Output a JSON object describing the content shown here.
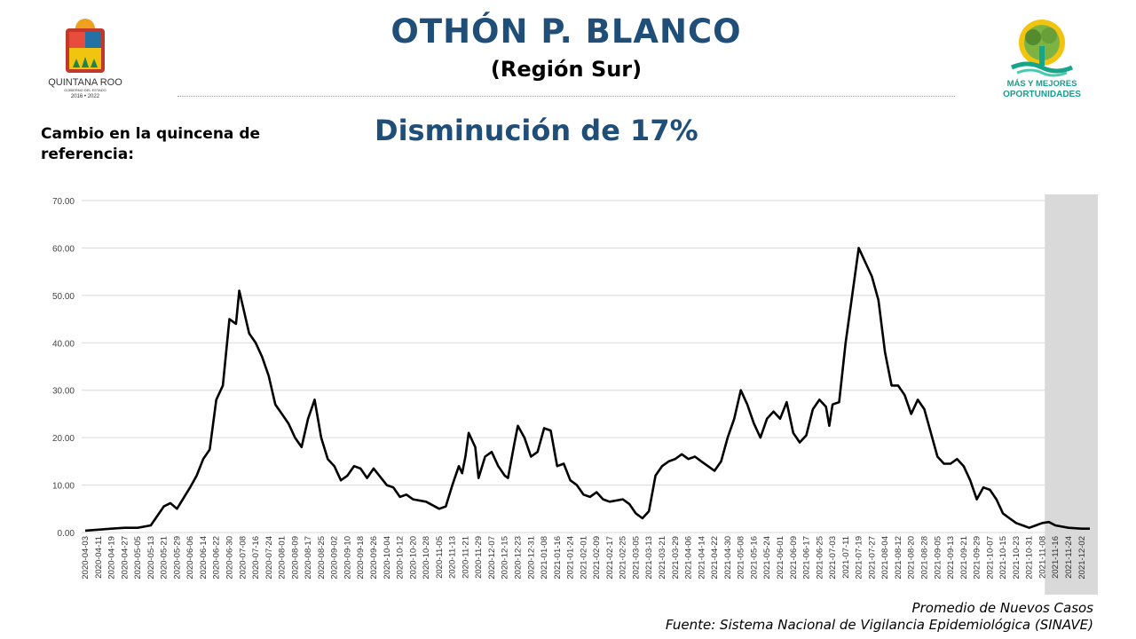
{
  "header": {
    "title": "OTHÓN P. BLANCO",
    "subtitle": "(Región Sur)"
  },
  "change_label": "Cambio en la quincena de referencia:",
  "headline": "Disminución de 17%",
  "logos": {
    "left_text": "QUINTANA ROO",
    "left_subtext": "GOBIERNO DEL ESTADO",
    "left_years": "2016 • 2022",
    "right_line1": "MÁS Y MEJORES",
    "right_line2": "OPORTUNIDADES"
  },
  "footer": {
    "line1": "Promedio de Nuevos Casos",
    "line2": "Fuente: Sistema Nacional de Vigilancia Epidemiológica (SINAVE)"
  },
  "colors": {
    "title": "#1f4e79",
    "line": "#000000",
    "grid": "#d9d9d9",
    "highlight": "#d9d9d9"
  },
  "chart_data": {
    "type": "line",
    "x_start": "2020-04-03",
    "x_end": "2021-12-07",
    "x_ticks": [
      "2020-04-03",
      "2020-04-11",
      "2020-04-19",
      "2020-04-27",
      "2020-05-05",
      "2020-05-13",
      "2020-05-21",
      "2020-05-29",
      "2020-06-06",
      "2020-06-14",
      "2020-06-22",
      "2020-06-30",
      "2020-07-08",
      "2020-07-16",
      "2020-07-24",
      "2020-08-01",
      "2020-08-09",
      "2020-08-17",
      "2020-08-25",
      "2020-09-02",
      "2020-09-10",
      "2020-09-18",
      "2020-09-26",
      "2020-10-04",
      "2020-10-12",
      "2020-10-20",
      "2020-10-28",
      "2020-11-05",
      "2020-11-13",
      "2020-11-21",
      "2020-11-29",
      "2020-12-07",
      "2020-12-15",
      "2020-12-23",
      "2020-12-31",
      "2021-01-08",
      "2021-01-16",
      "2021-01-24",
      "2021-02-01",
      "2021-02-09",
      "2021-02-17",
      "2021-02-25",
      "2021-03-05",
      "2021-03-13",
      "2021-03-21",
      "2021-03-29",
      "2021-04-06",
      "2021-04-14",
      "2021-04-22",
      "2021-04-30",
      "2021-05-08",
      "2021-05-16",
      "2021-05-24",
      "2021-06-01",
      "2021-06-09",
      "2021-06-17",
      "2021-06-25",
      "2021-07-03",
      "2021-07-11",
      "2021-07-19",
      "2021-07-27",
      "2021-08-04",
      "2021-08-12",
      "2021-08-20",
      "2021-08-28",
      "2021-09-05",
      "2021-09-13",
      "2021-09-21",
      "2021-09-29",
      "2021-10-07",
      "2021-10-15",
      "2021-10-23",
      "2021-10-31",
      "2021-11-08",
      "2021-11-16",
      "2021-11-24",
      "2021-12-02"
    ],
    "ylim": [
      0,
      70
    ],
    "y_ticks": [
      "0.00",
      "10.00",
      "20.00",
      "30.00",
      "40.00",
      "50.00",
      "60.00",
      "70.00"
    ],
    "grid": true,
    "highlight_range": [
      "2021-11-16",
      "2021-12-07"
    ],
    "series": [
      {
        "points": [
          [
            "2020-04-03",
            0.4
          ],
          [
            "2020-04-11",
            0.6
          ],
          [
            "2020-04-19",
            0.8
          ],
          [
            "2020-04-27",
            1.0
          ],
          [
            "2020-05-05",
            1.0
          ],
          [
            "2020-05-13",
            1.5
          ],
          [
            "2020-05-21",
            5.5
          ],
          [
            "2020-05-25",
            6.2
          ],
          [
            "2020-05-29",
            5.0
          ],
          [
            "2020-06-06",
            9.5
          ],
          [
            "2020-06-10",
            12.0
          ],
          [
            "2020-06-14",
            15.5
          ],
          [
            "2020-06-18",
            17.5
          ],
          [
            "2020-06-22",
            28.0
          ],
          [
            "2020-06-26",
            31.0
          ],
          [
            "2020-06-30",
            45.0
          ],
          [
            "2020-07-04",
            44.0
          ],
          [
            "2020-07-06",
            51.0
          ],
          [
            "2020-07-08",
            48.0
          ],
          [
            "2020-07-12",
            42.0
          ],
          [
            "2020-07-16",
            40.0
          ],
          [
            "2020-07-20",
            37.0
          ],
          [
            "2020-07-24",
            33.0
          ],
          [
            "2020-07-28",
            27.0
          ],
          [
            "2020-08-01",
            25.0
          ],
          [
            "2020-08-05",
            23.0
          ],
          [
            "2020-08-09",
            20.0
          ],
          [
            "2020-08-13",
            18.0
          ],
          [
            "2020-08-17",
            24.0
          ],
          [
            "2020-08-21",
            28.0
          ],
          [
            "2020-08-25",
            20.0
          ],
          [
            "2020-08-29",
            15.5
          ],
          [
            "2020-09-02",
            14.0
          ],
          [
            "2020-09-06",
            11.0
          ],
          [
            "2020-09-10",
            12.0
          ],
          [
            "2020-09-14",
            14.0
          ],
          [
            "2020-09-18",
            13.5
          ],
          [
            "2020-09-22",
            11.5
          ],
          [
            "2020-09-26",
            13.5
          ],
          [
            "2020-10-04",
            10.0
          ],
          [
            "2020-10-08",
            9.5
          ],
          [
            "2020-10-12",
            7.5
          ],
          [
            "2020-10-16",
            8.0
          ],
          [
            "2020-10-20",
            7.0
          ],
          [
            "2020-10-28",
            6.5
          ],
          [
            "2020-11-05",
            5.0
          ],
          [
            "2020-11-09",
            5.5
          ],
          [
            "2020-11-13",
            10.0
          ],
          [
            "2020-11-17",
            14.0
          ],
          [
            "2020-11-19",
            12.5
          ],
          [
            "2020-11-21",
            16.0
          ],
          [
            "2020-11-23",
            21.0
          ],
          [
            "2020-11-27",
            18.0
          ],
          [
            "2020-11-29",
            11.5
          ],
          [
            "2020-12-03",
            16.0
          ],
          [
            "2020-12-07",
            17.0
          ],
          [
            "2020-12-11",
            14.0
          ],
          [
            "2020-12-15",
            12.0
          ],
          [
            "2020-12-17",
            11.5
          ],
          [
            "2020-12-21",
            19.0
          ],
          [
            "2020-12-23",
            22.5
          ],
          [
            "2020-12-27",
            20.0
          ],
          [
            "2020-12-31",
            16.0
          ],
          [
            "2021-01-04",
            17.0
          ],
          [
            "2021-01-08",
            22.0
          ],
          [
            "2021-01-12",
            21.5
          ],
          [
            "2021-01-16",
            14.0
          ],
          [
            "2021-01-20",
            14.5
          ],
          [
            "2021-01-24",
            11.0
          ],
          [
            "2021-01-28",
            10.0
          ],
          [
            "2021-02-01",
            8.0
          ],
          [
            "2021-02-05",
            7.5
          ],
          [
            "2021-02-09",
            8.5
          ],
          [
            "2021-02-13",
            7.0
          ],
          [
            "2021-02-17",
            6.5
          ],
          [
            "2021-02-25",
            7.0
          ],
          [
            "2021-03-01",
            6.0
          ],
          [
            "2021-03-05",
            4.0
          ],
          [
            "2021-03-09",
            3.0
          ],
          [
            "2021-03-13",
            4.5
          ],
          [
            "2021-03-17",
            12.0
          ],
          [
            "2021-03-21",
            14.0
          ],
          [
            "2021-03-25",
            15.0
          ],
          [
            "2021-03-29",
            15.5
          ],
          [
            "2021-04-02",
            16.5
          ],
          [
            "2021-04-06",
            15.5
          ],
          [
            "2021-04-10",
            16.0
          ],
          [
            "2021-04-14",
            15.0
          ],
          [
            "2021-04-18",
            14.0
          ],
          [
            "2021-04-22",
            13.0
          ],
          [
            "2021-04-26",
            15.0
          ],
          [
            "2021-04-30",
            20.0
          ],
          [
            "2021-05-04",
            24.0
          ],
          [
            "2021-05-08",
            30.0
          ],
          [
            "2021-05-12",
            27.0
          ],
          [
            "2021-05-16",
            23.0
          ],
          [
            "2021-05-20",
            20.0
          ],
          [
            "2021-05-24",
            24.0
          ],
          [
            "2021-05-28",
            25.5
          ],
          [
            "2021-06-01",
            24.0
          ],
          [
            "2021-06-05",
            27.5
          ],
          [
            "2021-06-09",
            21.0
          ],
          [
            "2021-06-13",
            19.0
          ],
          [
            "2021-06-17",
            20.5
          ],
          [
            "2021-06-21",
            26.0
          ],
          [
            "2021-06-25",
            28.0
          ],
          [
            "2021-06-29",
            26.5
          ],
          [
            "2021-07-01",
            22.5
          ],
          [
            "2021-07-03",
            27.0
          ],
          [
            "2021-07-07",
            27.5
          ],
          [
            "2021-07-11",
            40.0
          ],
          [
            "2021-07-15",
            50.0
          ],
          [
            "2021-07-19",
            60.0
          ],
          [
            "2021-07-23",
            57.0
          ],
          [
            "2021-07-27",
            54.0
          ],
          [
            "2021-07-31",
            49.0
          ],
          [
            "2021-08-04",
            38.0
          ],
          [
            "2021-08-08",
            31.0
          ],
          [
            "2021-08-12",
            31.0
          ],
          [
            "2021-08-16",
            29.0
          ],
          [
            "2021-08-20",
            25.0
          ],
          [
            "2021-08-24",
            28.0
          ],
          [
            "2021-08-28",
            26.0
          ],
          [
            "2021-09-01",
            21.0
          ],
          [
            "2021-09-05",
            16.0
          ],
          [
            "2021-09-09",
            14.5
          ],
          [
            "2021-09-13",
            14.5
          ],
          [
            "2021-09-17",
            15.5
          ],
          [
            "2021-09-21",
            14.0
          ],
          [
            "2021-09-25",
            11.0
          ],
          [
            "2021-09-29",
            7.0
          ],
          [
            "2021-10-03",
            9.5
          ],
          [
            "2021-10-07",
            9.0
          ],
          [
            "2021-10-11",
            7.0
          ],
          [
            "2021-10-15",
            4.0
          ],
          [
            "2021-10-19",
            3.0
          ],
          [
            "2021-10-23",
            2.0
          ],
          [
            "2021-10-27",
            1.5
          ],
          [
            "2021-10-31",
            1.0
          ],
          [
            "2021-11-04",
            1.5
          ],
          [
            "2021-11-08",
            2.0
          ],
          [
            "2021-11-12",
            2.2
          ],
          [
            "2021-11-16",
            1.5
          ],
          [
            "2021-11-24",
            1.0
          ],
          [
            "2021-12-02",
            0.8
          ],
          [
            "2021-12-07",
            0.8
          ]
        ]
      }
    ]
  }
}
